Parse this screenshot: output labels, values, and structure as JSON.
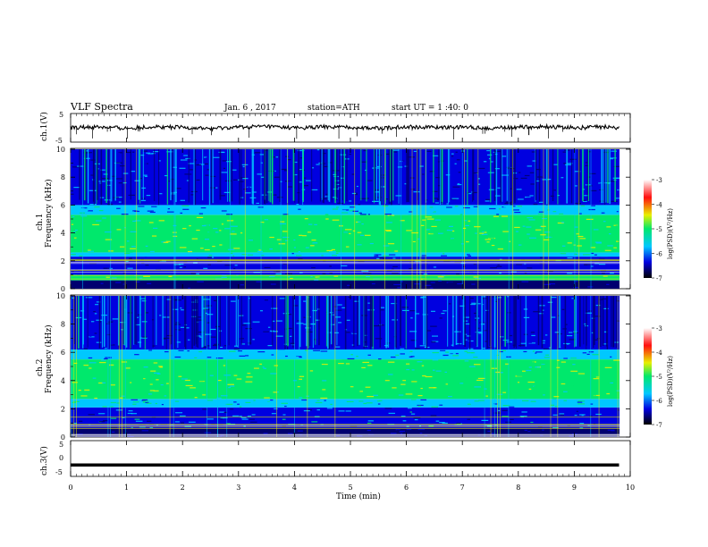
{
  "header": {
    "title": "VLF  Spectra",
    "date": "Jan. 6  , 2017",
    "station": "station=ATH",
    "start_ut": "start  UT  =   1 :40: 0"
  },
  "colors": {
    "dark_blue": "#000070",
    "blue": "#0000e0",
    "cyan": "#00c8ff",
    "green": "#00e86c",
    "yellow": "#e8f000",
    "red": "#ff1010",
    "white": "#ffffff",
    "trace": "#000000"
  },
  "chart_data": [
    {
      "type": "line",
      "panel": "ch1_waveform",
      "ylabel": "ch.1(V)",
      "ylim": [
        -5,
        5
      ],
      "yticks": [
        "5",
        "-5"
      ],
      "x": [
        0,
        0.5,
        1,
        1.5,
        2,
        2.5,
        3,
        3.5,
        4,
        4.5,
        5,
        5.5,
        6,
        6.5,
        7,
        7.5,
        8,
        8.5,
        9,
        9.5,
        9.8
      ],
      "y": [
        0,
        0.3,
        -0.2,
        0.4,
        0.1,
        -0.3,
        0.2,
        0.5,
        -0.1,
        0.3,
        0.2,
        -0.2,
        0.4,
        0.1,
        0.3,
        -0.1,
        0.2,
        0.4,
        0.0,
        0.3,
        0.1
      ]
    },
    {
      "type": "heatmap",
      "panel": "ch1_spectrogram",
      "ylabel": "Frequency  (kHz)",
      "ylabel2": "ch.1",
      "ylim": [
        0,
        10
      ],
      "yticks": [
        "0",
        "2",
        "4",
        "6",
        "8",
        "10"
      ],
      "bands": [
        {
          "from": 0,
          "to": 0.6,
          "level": -7
        },
        {
          "from": 0.6,
          "to": 1.0,
          "level": -5
        },
        {
          "from": 1.0,
          "to": 2.3,
          "level": -6.5
        },
        {
          "from": 2.3,
          "to": 2.6,
          "level": -5.5
        },
        {
          "from": 2.6,
          "to": 5.3,
          "level": -4.8
        },
        {
          "from": 5.3,
          "to": 6.0,
          "level": -5.8
        },
        {
          "from": 6.0,
          "to": 10,
          "level": -6.3
        }
      ]
    },
    {
      "type": "heatmap",
      "panel": "ch2_spectrogram",
      "ylabel": "Frequency  (kHz)",
      "ylabel2": "ch.2",
      "ylim": [
        0,
        10
      ],
      "yticks": [
        "0",
        "2",
        "4",
        "6",
        "8",
        "10"
      ],
      "bands": [
        {
          "from": 0,
          "to": 0.6,
          "level": -7
        },
        {
          "from": 0.6,
          "to": 2.1,
          "level": -6.2
        },
        {
          "from": 2.1,
          "to": 2.7,
          "level": -5.5
        },
        {
          "from": 2.7,
          "to": 5.5,
          "level": -4.8
        },
        {
          "from": 5.5,
          "to": 6.2,
          "level": -5.8
        },
        {
          "from": 6.2,
          "to": 10,
          "level": -6.3
        }
      ]
    },
    {
      "type": "line",
      "panel": "ch3_waveform",
      "ylabel": "ch.3(V)",
      "ylim": [
        -5,
        5
      ],
      "yticks": [
        "5",
        "0",
        "-5"
      ],
      "x": [
        0,
        9.8
      ],
      "y": [
        -1.8,
        -1.8
      ]
    }
  ],
  "xaxis": {
    "label": "Time  (min)",
    "ticks": [
      "0",
      "1",
      "2",
      "3",
      "4",
      "5",
      "6",
      "7",
      "8",
      "9",
      "10"
    ],
    "xlim": [
      0,
      10
    ]
  },
  "colorbar": {
    "label": "log(PSD)(V²/Hz)",
    "range": [
      -7,
      -3
    ],
    "ticks": [
      "-3",
      "-4",
      "-5",
      "-6",
      "-7"
    ]
  }
}
